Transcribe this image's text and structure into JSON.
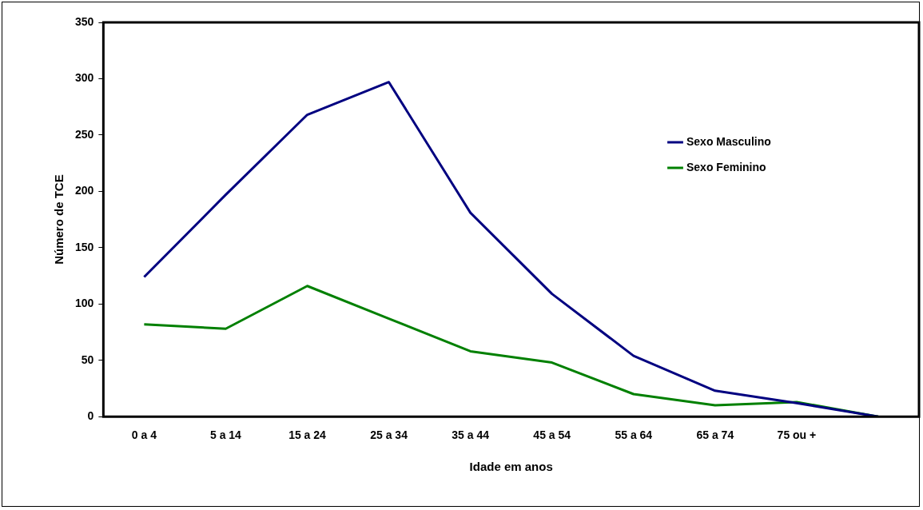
{
  "chart_data": {
    "type": "line",
    "xlabel": "Idade em anos",
    "ylabel": "Número de TCE",
    "categories": [
      "0 a 4",
      "5 a 14",
      "15 a 24",
      "25 a 34",
      "35 a 44",
      "45 a 54",
      "55 a 64",
      "65 a 74",
      "75 ou +",
      null
    ],
    "series": [
      {
        "name": "Sexo Masculino",
        "color": "#000080",
        "values": [
          124,
          197,
          268,
          297,
          181,
          109,
          54,
          23,
          12,
          0
        ]
      },
      {
        "name": "Sexo Feminino",
        "color": "#008000",
        "values": [
          82,
          78,
          116,
          87,
          58,
          48,
          20,
          10,
          13,
          0
        ]
      }
    ],
    "ylim": [
      0,
      350
    ],
    "yticks": [
      0,
      50,
      100,
      150,
      200,
      250,
      300,
      350
    ],
    "grid": false,
    "legend": "right",
    "marker": "none",
    "line_style": "solid"
  }
}
